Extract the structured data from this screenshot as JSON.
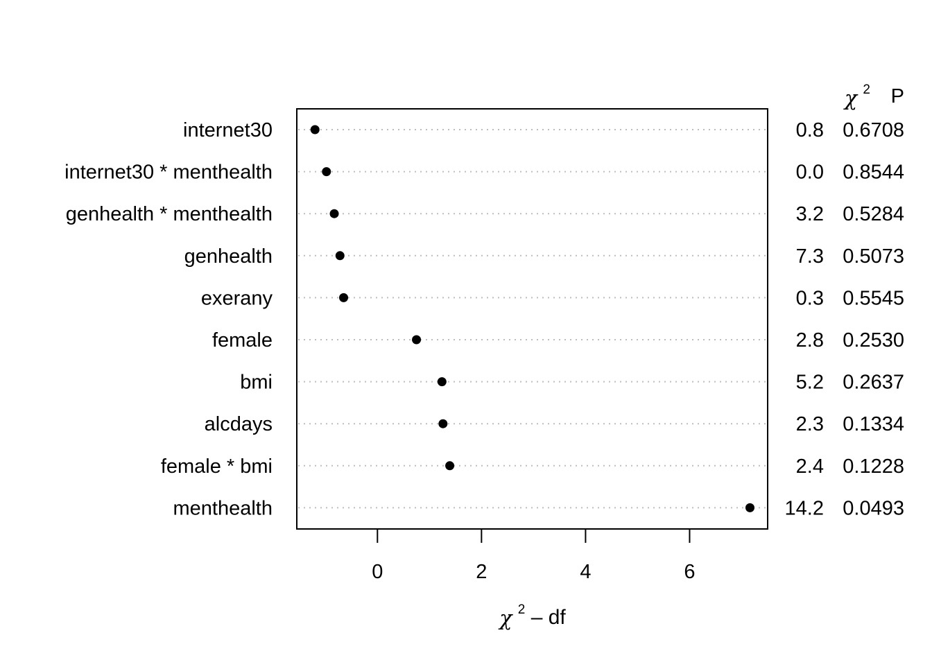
{
  "chart_data": {
    "type": "scatter",
    "title": "",
    "xlabel": {
      "chi": "χ",
      "sup": "2",
      "rest": " – df"
    },
    "ylabel": "",
    "xlim": [
      -1.55,
      7.5
    ],
    "xticks": [
      "0",
      "2",
      "4",
      "6"
    ],
    "grid": "dotted horizontal",
    "right_header": {
      "chi": "χ",
      "sup": "2",
      "p": "P"
    },
    "rows": [
      {
        "label": "internet30",
        "value": -1.2,
        "chisq": "0.8",
        "p": "0.6708"
      },
      {
        "label": "internet30 * menthealth",
        "value": -0.98,
        "chisq": "0.0",
        "p": "0.8544"
      },
      {
        "label": "genhealth * menthealth",
        "value": -0.83,
        "chisq": "3.2",
        "p": "0.5284"
      },
      {
        "label": "genhealth",
        "value": -0.72,
        "chisq": "7.3",
        "p": "0.5073"
      },
      {
        "label": "exerany",
        "value": -0.65,
        "chisq": "0.3",
        "p": "0.5545"
      },
      {
        "label": "female",
        "value": 0.75,
        "chisq": "2.8",
        "p": "0.2530"
      },
      {
        "label": "bmi",
        "value": 1.24,
        "chisq": "5.2",
        "p": "0.2637"
      },
      {
        "label": "alcdays",
        "value": 1.26,
        "chisq": "2.3",
        "p": "0.1334"
      },
      {
        "label": "female * bmi",
        "value": 1.39,
        "chisq": "2.4",
        "p": "0.1228"
      },
      {
        "label": "menthealth",
        "value": 7.16,
        "chisq": "14.2",
        "p": "0.0493"
      }
    ]
  }
}
